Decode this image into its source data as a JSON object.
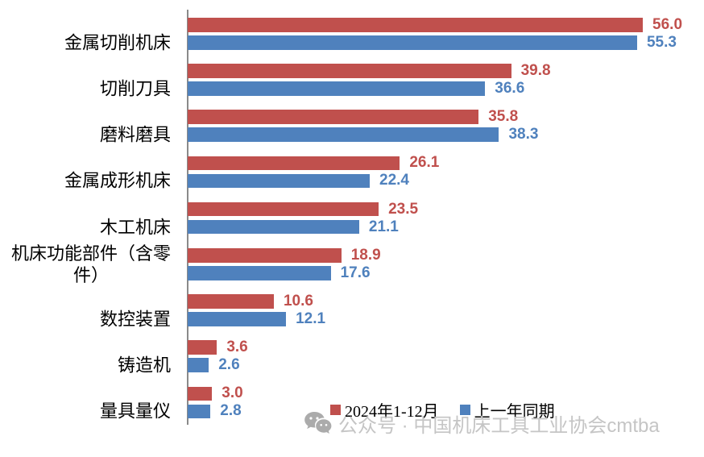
{
  "chart_data": {
    "type": "bar",
    "orientation": "horizontal",
    "title": "",
    "xlabel": "",
    "ylabel": "",
    "xlim": [
      0,
      63
    ],
    "grid": false,
    "legend_position": "bottom",
    "value_labels": true,
    "axis_color": "#8a8a8a",
    "categories": [
      "金属切削机床",
      "切削刀具",
      "磨料磨具",
      "金属成形机床",
      "木工机床",
      "机床功能部件（含零件）",
      "数控装置",
      "铸造机",
      "量具量仪"
    ],
    "series": [
      {
        "name": "2024年1-12月",
        "color": "#C0504D",
        "values": [
          56.0,
          39.8,
          35.8,
          26.1,
          23.5,
          18.9,
          10.6,
          3.6,
          3.0
        ]
      },
      {
        "name": "上一年同期",
        "color": "#4F81BD",
        "values": [
          55.3,
          36.6,
          38.3,
          22.4,
          21.1,
          17.6,
          12.1,
          2.6,
          2.8
        ]
      }
    ]
  },
  "watermark": {
    "icon": "wechat-icon",
    "text": "公众号 · 中国机床工具工业协会cmtba"
  }
}
